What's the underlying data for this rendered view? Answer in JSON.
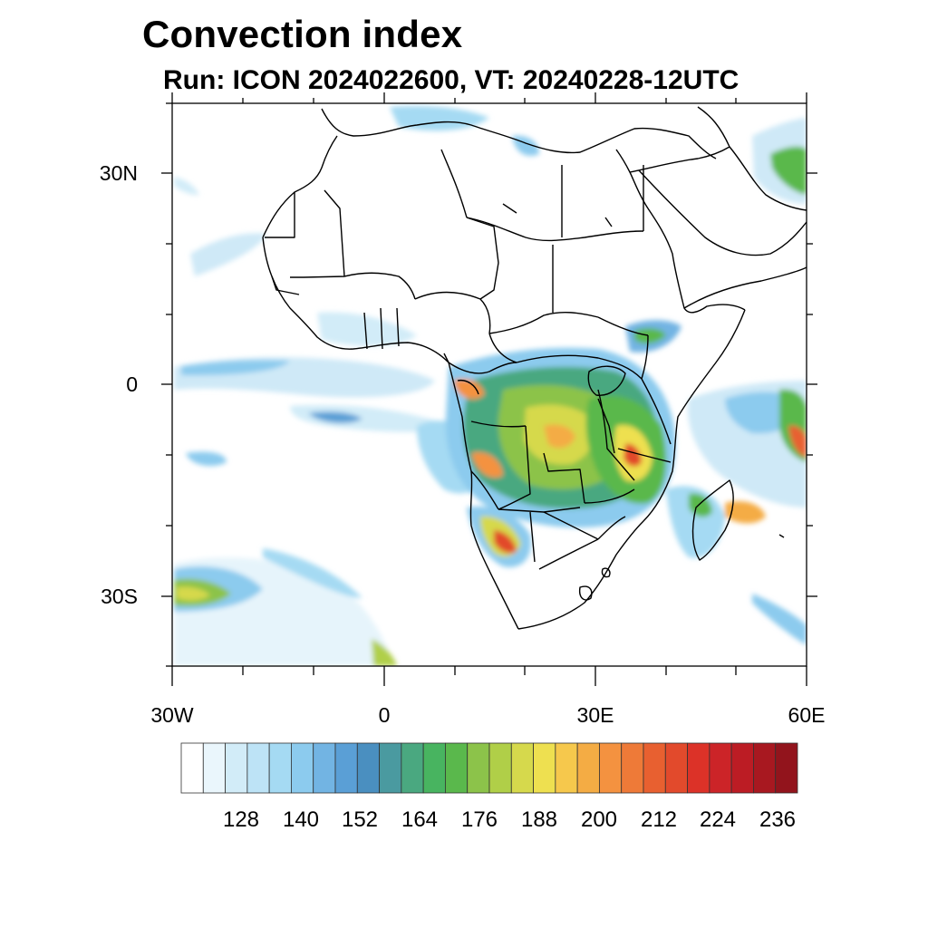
{
  "title": "Convection index",
  "subtitle": "Run: ICON 2024022600,  VT: 20240228-12UTC",
  "map": {
    "lon_range": [
      -30,
      60
    ],
    "lat_range": [
      -40,
      40
    ],
    "lat_ticks": [
      {
        "value": 30,
        "label": "30N"
      },
      {
        "value": 0,
        "label": "0"
      },
      {
        "value": -30,
        "label": "30S"
      }
    ],
    "lon_ticks": [
      {
        "value": -30,
        "label": "30W"
      },
      {
        "value": 0,
        "label": "0"
      },
      {
        "value": 30,
        "label": "30E"
      },
      {
        "value": 60,
        "label": "60E"
      }
    ]
  },
  "colorbar": {
    "labels": [
      "128",
      "140",
      "152",
      "164",
      "176",
      "188",
      "200",
      "212",
      "224",
      "236"
    ],
    "colors": [
      "#ffffff",
      "#eaf6fc",
      "#d2ecf8",
      "#bde3f6",
      "#a5daf3",
      "#8ccbee",
      "#72b4e3",
      "#5a9fd6",
      "#4a8fc0",
      "#4a9aa0",
      "#4aa880",
      "#48b460",
      "#5ab84c",
      "#8cc34a",
      "#b0cf48",
      "#d6d94c",
      "#eee050",
      "#f6c84c",
      "#f4ac44",
      "#f49240",
      "#ee7a38",
      "#e86030",
      "#e24a2c",
      "#dc3228",
      "#cc2428",
      "#bc1c24",
      "#a81820",
      "#92141c"
    ]
  }
}
